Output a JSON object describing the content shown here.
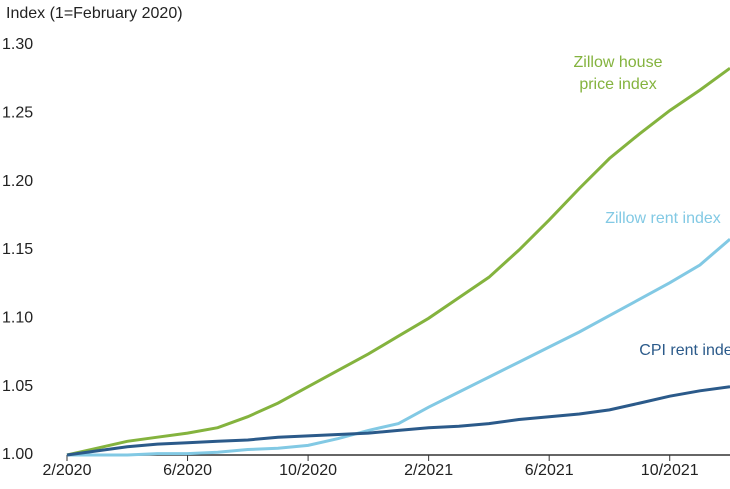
{
  "chart_data": {
    "type": "line",
    "y_axis_label": "Index (1=February 2020)",
    "categories": [
      "2/2020",
      null,
      null,
      null,
      "6/2020",
      null,
      null,
      null,
      "10/2020",
      null,
      null,
      null,
      "2/2021",
      null,
      null,
      null,
      "6/2021",
      null,
      null,
      null,
      "10/2021",
      null,
      null
    ],
    "series": [
      {
        "name": "Zillow house price index",
        "color": "#84b33e",
        "values": [
          1.0,
          1.005,
          1.01,
          1.013,
          1.016,
          1.02,
          1.028,
          1.038,
          1.05,
          1.062,
          1.074,
          1.087,
          1.1,
          1.115,
          1.13,
          1.15,
          1.172,
          1.195,
          1.217,
          1.235,
          1.252,
          1.267,
          1.283
        ]
      },
      {
        "name": "Zillow rent index",
        "color": "#82c9e4",
        "values": [
          1.0,
          1.0,
          1.0,
          1.001,
          1.001,
          1.002,
          1.004,
          1.005,
          1.007,
          1.012,
          1.018,
          1.023,
          1.035,
          1.046,
          1.057,
          1.068,
          1.079,
          1.09,
          1.102,
          1.114,
          1.126,
          1.139,
          1.158
        ]
      },
      {
        "name": "CPI rent index",
        "color": "#2b5a8a",
        "values": [
          1.0,
          1.003,
          1.006,
          1.008,
          1.009,
          1.01,
          1.011,
          1.013,
          1.014,
          1.015,
          1.016,
          1.018,
          1.02,
          1.021,
          1.023,
          1.026,
          1.028,
          1.03,
          1.033,
          1.038,
          1.043,
          1.047,
          1.05
        ]
      }
    ],
    "ylim": [
      1.0,
      1.3
    ],
    "yticks": [
      {
        "value": 1.0,
        "label": "1.00"
      },
      1.05,
      {
        "value": 1.1,
        "label": "1.10"
      },
      1.15,
      {
        "value": 1.2,
        "label": "1.20"
      },
      1.25,
      {
        "value": 1.3,
        "label": "1.30"
      }
    ]
  }
}
